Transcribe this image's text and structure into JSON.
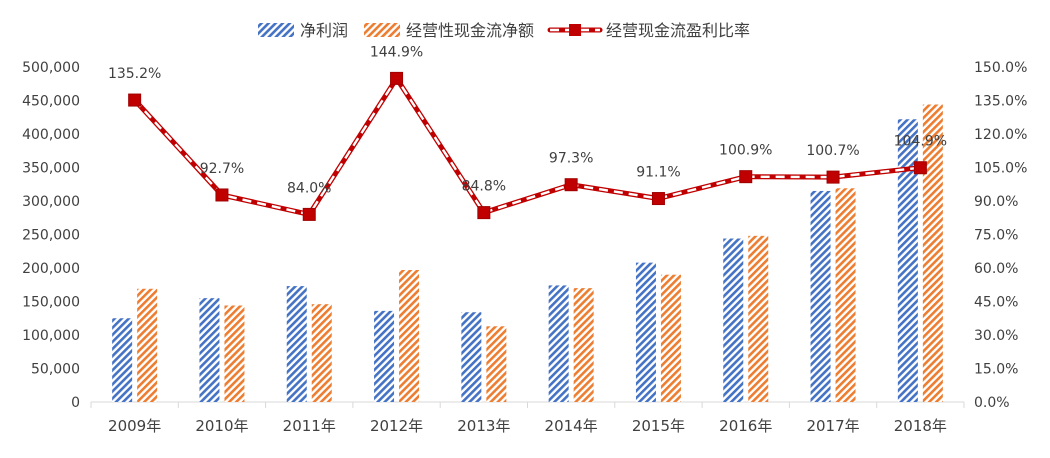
{
  "chart_data": {
    "type": "bar",
    "categories": [
      "2009年",
      "2010年",
      "2011年",
      "2012年",
      "2013年",
      "2014年",
      "2015年",
      "2016年",
      "2017年",
      "2018年"
    ],
    "series": [
      {
        "name": "净利润",
        "type": "bar",
        "axis": "left",
        "color": "#4472C4",
        "values": [
          125000,
          155000,
          173000,
          136000,
          134000,
          174000,
          208000,
          244000,
          315000,
          422000
        ]
      },
      {
        "name": "经营性现金流净额",
        "type": "bar",
        "axis": "left",
        "color": "#ED7D31",
        "values": [
          169000,
          144000,
          146000,
          197000,
          113000,
          170000,
          190000,
          248000,
          319000,
          444000
        ]
      },
      {
        "name": "经营现金流盈利比率",
        "type": "line",
        "axis": "right",
        "color": "#C00000",
        "values": [
          135.2,
          92.7,
          84.0,
          144.9,
          84.8,
          97.3,
          91.1,
          100.9,
          100.7,
          104.9
        ],
        "labels": [
          "135.2%",
          "92.7%",
          "84.0%",
          "144.9%",
          "84.8%",
          "97.3%",
          "91.1%",
          "100.9%",
          "100.7%",
          "104.9%"
        ]
      }
    ],
    "y_left": {
      "min": 0,
      "max": 500000,
      "step": 50000,
      "ticks": [
        "0",
        "50,000",
        "100,000",
        "150,000",
        "200,000",
        "250,000",
        "300,000",
        "350,000",
        "400,000",
        "450,000",
        "500,000"
      ]
    },
    "y_right": {
      "min": 0,
      "max": 150,
      "step": 15,
      "ticks": [
        "0.0%",
        "15.0%",
        "30.0%",
        "45.0%",
        "60.0%",
        "75.0%",
        "90.0%",
        "105.0%",
        "120.0%",
        "135.0%",
        "150.0%"
      ]
    },
    "legend_position": "top-center",
    "grid": false
  }
}
